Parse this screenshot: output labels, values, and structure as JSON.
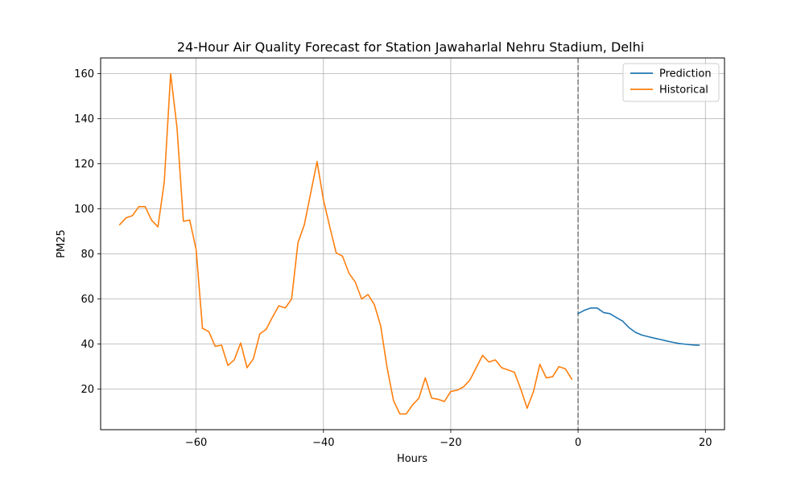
{
  "chart_data": {
    "type": "line",
    "title": "24-Hour Air Quality Forecast for Station Jawaharlal Nehru Stadium, Delhi",
    "xlabel": "Hours",
    "ylabel": "PM25",
    "xlim": [
      -75,
      23
    ],
    "ylim": [
      2,
      167
    ],
    "xticks": [
      -60,
      -40,
      -20,
      0,
      20
    ],
    "yticks": [
      20,
      40,
      60,
      80,
      100,
      120,
      140,
      160
    ],
    "grid": true,
    "legend_position": "top-right",
    "vline": {
      "x": 0,
      "style": "dashed",
      "color": "#808080"
    },
    "series": [
      {
        "name": "Prediction",
        "color": "#1f77b4",
        "x": [
          0,
          1,
          2,
          3,
          4,
          5,
          6,
          7,
          8,
          9,
          10,
          11,
          12,
          13,
          14,
          15,
          16,
          17,
          18,
          19
        ],
        "y": [
          53.5,
          55.0,
          56.0,
          56.0,
          54.0,
          53.5,
          51.8,
          50.2,
          47.3,
          45.2,
          44.0,
          43.3,
          42.6,
          42.0,
          41.3,
          40.7,
          40.2,
          39.9,
          39.6,
          39.5
        ]
      },
      {
        "name": "Historical",
        "color": "#ff7f0e",
        "x": [
          -72,
          -71,
          -70,
          -69,
          -68,
          -67,
          -66,
          -65,
          -64,
          -63,
          -62,
          -61,
          -60,
          -59,
          -58,
          -57,
          -56,
          -55,
          -54,
          -53,
          -52,
          -51,
          -50,
          -49,
          -48,
          -47,
          -46,
          -45,
          -44,
          -43,
          -42,
          -41,
          -40,
          -39,
          -38,
          -37,
          -36,
          -35,
          -34,
          -33,
          -32,
          -31,
          -30,
          -29,
          -28,
          -27,
          -26,
          -25,
          -24,
          -23,
          -22,
          -21,
          -20,
          -19,
          -18,
          -17,
          -16,
          -15,
          -14,
          -13,
          -12,
          -11,
          -10,
          -9,
          -8,
          -7,
          -6,
          -5,
          -4,
          -3,
          -2,
          -1
        ],
        "y": [
          93,
          96,
          97,
          101,
          101,
          95,
          92,
          112,
          160,
          136,
          94.5,
          95,
          82,
          47,
          45.5,
          39,
          39.5,
          30.5,
          33,
          40.5,
          29.5,
          33.5,
          44.5,
          46.5,
          52,
          57,
          56,
          60,
          85,
          93,
          107,
          121,
          104,
          92,
          80.5,
          79,
          71.5,
          67.5,
          60,
          62,
          57.5,
          48,
          29.5,
          15,
          9,
          9,
          13,
          16,
          25,
          16,
          15.5,
          14.5,
          19,
          19.5,
          21,
          24,
          29.5,
          35,
          32,
          33,
          29.5,
          28.5,
          27.5,
          20,
          11.5,
          19,
          31,
          25,
          25.5,
          30,
          29,
          24.5
        ]
      }
    ]
  }
}
